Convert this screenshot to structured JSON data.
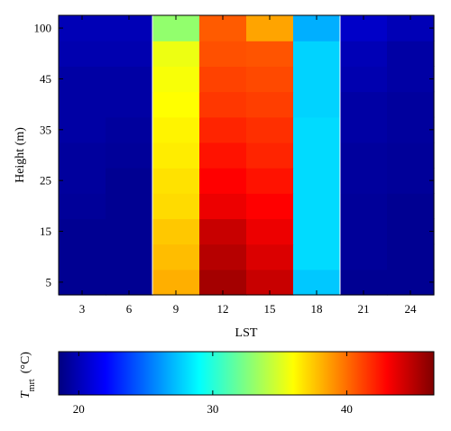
{
  "chart_data": [
    {
      "type": "heatmap",
      "x": [
        "3",
        "6",
        "9",
        "12",
        "15",
        "18",
        "21",
        "24"
      ],
      "y": [
        "5",
        "15",
        "25",
        "35",
        "45",
        "100"
      ],
      "xlabel": "LST",
      "ylabel": "Height (m)",
      "colormap": "jet",
      "clim": [
        18.5,
        46.5
      ],
      "rows": [
        {
          "height": "5",
          "rows_spanned": 1,
          "values": [
            19.0,
            19.0,
            38.2,
            45.5,
            44.5,
            27.5,
            19.0,
            19.0
          ]
        },
        {
          "height": "5-15",
          "rows_spanned": 1,
          "values": [
            19.0,
            19.0,
            37.8,
            45.0,
            44.0,
            28.0,
            19.2,
            19.0
          ]
        },
        {
          "height": "15",
          "rows_spanned": 1,
          "values": [
            19.0,
            19.0,
            37.5,
            44.5,
            43.5,
            28.0,
            19.2,
            19.0
          ]
        },
        {
          "height": "15-25",
          "rows_spanned": 1,
          "values": [
            19.2,
            19.0,
            37.0,
            43.5,
            43.0,
            28.0,
            19.2,
            19.0
          ]
        },
        {
          "height": "25",
          "rows_spanned": 1,
          "values": [
            19.3,
            19.0,
            36.8,
            43.0,
            42.5,
            28.0,
            19.3,
            19.2
          ]
        },
        {
          "height": "25-35",
          "rows_spanned": 1,
          "values": [
            19.3,
            19.2,
            36.5,
            42.5,
            42.0,
            28.0,
            19.3,
            19.2
          ]
        },
        {
          "height": "35",
          "rows_spanned": 1,
          "values": [
            19.5,
            19.3,
            36.3,
            42.0,
            41.7,
            28.0,
            19.5,
            19.3
          ]
        },
        {
          "height": "35-45",
          "rows_spanned": 1,
          "values": [
            19.5,
            19.5,
            36.0,
            41.5,
            41.3,
            27.8,
            19.5,
            19.3
          ]
        },
        {
          "height": "45",
          "rows_spanned": 1,
          "values": [
            19.5,
            19.5,
            35.8,
            41.2,
            41.0,
            27.8,
            19.8,
            19.5
          ]
        },
        {
          "height": "45-100",
          "rows_spanned": 1,
          "values": [
            19.8,
            19.8,
            35.5,
            40.8,
            40.7,
            27.8,
            20.0,
            19.5
          ]
        },
        {
          "height": "100",
          "rows_spanned": 1,
          "values": [
            20.0,
            20.0,
            33.0,
            40.5,
            38.5,
            26.8,
            20.5,
            20.0
          ]
        }
      ],
      "colorbar": {
        "label_main": "T",
        "label_sub": "mrt",
        "label_unit": "(°C)",
        "ticks": [
          "20",
          "30",
          "40"
        ],
        "tick_values": [
          20,
          30,
          40
        ]
      }
    }
  ],
  "colors": {
    "axis": "#000000",
    "background": "#ffffff"
  }
}
